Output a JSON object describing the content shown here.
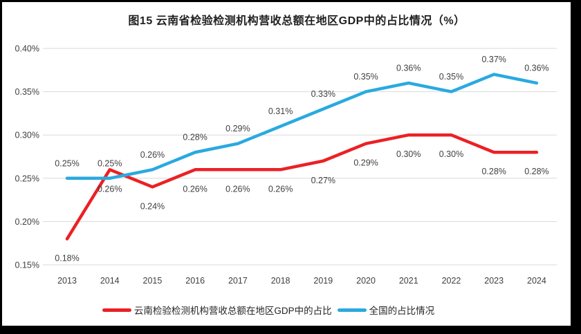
{
  "window": {
    "frame_color": "#000000",
    "panel_background": "#ffffff"
  },
  "chart_data": {
    "type": "line",
    "title": "图15 云南省检验检测机构营收总额在地区GDP中的占比情况（%）",
    "categories": [
      "2013",
      "2014",
      "2015",
      "2016",
      "2017",
      "2018",
      "2019",
      "2020",
      "2021",
      "2022",
      "2023",
      "2024"
    ],
    "series": [
      {
        "name": "云南检验检测机构营收总额在地区GDP中的占比",
        "color": "#ec2024",
        "label_position": "below",
        "values": [
          0.18,
          0.26,
          0.24,
          0.26,
          0.26,
          0.26,
          0.27,
          0.29,
          0.3,
          0.3,
          0.28,
          0.28
        ]
      },
      {
        "name": "全国的占比情况",
        "color": "#2aa9e0",
        "label_position": "above",
        "values": [
          0.25,
          0.25,
          0.26,
          0.28,
          0.29,
          0.31,
          0.33,
          0.35,
          0.36,
          0.35,
          0.37,
          0.36
        ]
      }
    ],
    "ylim": [
      0.15,
      0.4
    ],
    "yticks": [
      {
        "value": 0.4,
        "label": "0.40%"
      },
      {
        "value": 0.35,
        "label": "0.35%"
      },
      {
        "value": 0.3,
        "label": "0.30%"
      },
      {
        "value": 0.25,
        "label": "0.25%"
      },
      {
        "value": 0.2,
        "label": "0.20%"
      },
      {
        "value": 0.15,
        "label": "0.15%"
      }
    ],
    "value_suffix": "%",
    "grid": "horizontal",
    "gridline_color": "#d9d9d9",
    "text_color": "#404040",
    "legend_position": "bottom"
  }
}
